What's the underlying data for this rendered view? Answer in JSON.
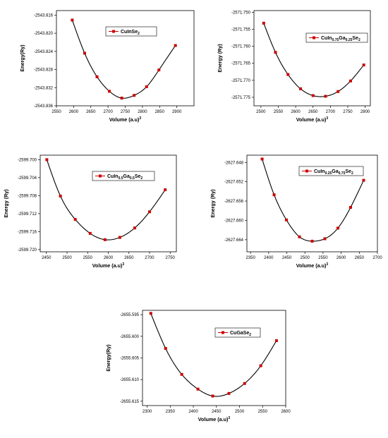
{
  "chart_data": [
    {
      "type": "scatter",
      "xlabel": "Volume (a.u)",
      "xlabel_sup": "3",
      "ylabel": "Energy(Ry)",
      "legend": {
        "base": "CuInSe",
        "sub": "2",
        "rest": "",
        "sub2": "",
        "tail": ""
      },
      "legend_placement": "top-right",
      "x_ticks": [
        2550,
        2600,
        2650,
        2700,
        2750,
        2800,
        2850,
        2900
      ],
      "y_ticks": [
        -2543.816,
        -2543.82,
        -2543.824,
        -2543.828,
        -2543.832,
        -2543.836
      ],
      "y_tick_labels": [
        "-2543.816",
        "-2543.820",
        "-2543.824",
        "-2543.828",
        "-2543.832",
        "-2543.836"
      ],
      "xlim": [
        2550,
        2950
      ],
      "ylim": [
        -2543.836,
        -2543.815
      ],
      "series_color": "#cc0000",
      "points": [
        {
          "x": 2596,
          "y": -2543.8171
        },
        {
          "x": 2632,
          "y": -2543.8244
        },
        {
          "x": 2668,
          "y": -2543.8296
        },
        {
          "x": 2704,
          "y": -2543.8328
        },
        {
          "x": 2740,
          "y": -2543.8343
        },
        {
          "x": 2776,
          "y": -2543.8337
        },
        {
          "x": 2812,
          "y": -2543.8318
        },
        {
          "x": 2848,
          "y": -2543.8281
        },
        {
          "x": 2896,
          "y": -2543.8227
        }
      ]
    },
    {
      "type": "scatter",
      "xlabel": "Volume (a.u)",
      "xlabel_sup": "3",
      "ylabel": "Energy (Ry)",
      "legend": {
        "base": "CuIn",
        "sub": "0.75",
        "rest": "Ga",
        "sub2": "0.25",
        "tail": "Se",
        "sub3": "2"
      },
      "legend_placement": "top-right",
      "x_ticks": [
        2500,
        2550,
        2600,
        2650,
        2700,
        2750,
        2800
      ],
      "y_ticks": [
        -2571.75,
        -2571.755,
        -2571.76,
        -2571.765,
        -2571.77,
        -2571.775
      ],
      "y_tick_labels": [
        "-2571.750",
        "-2571.755",
        "-2571.760",
        "-2571.765",
        "-2571.770",
        "-2571.775"
      ],
      "xlim": [
        2480,
        2815
      ],
      "ylim": [
        -2571.7775,
        -2571.7495
      ],
      "series_color": "#cc0000",
      "points": [
        {
          "x": 2508,
          "y": -2571.7532
        },
        {
          "x": 2542,
          "y": -2571.7618
        },
        {
          "x": 2578,
          "y": -2571.7683
        },
        {
          "x": 2614,
          "y": -2571.7725
        },
        {
          "x": 2650,
          "y": -2571.7745
        },
        {
          "x": 2686,
          "y": -2571.7747
        },
        {
          "x": 2722,
          "y": -2571.7733
        },
        {
          "x": 2758,
          "y": -2571.7702
        },
        {
          "x": 2796,
          "y": -2571.7655
        }
      ]
    },
    {
      "type": "scatter",
      "xlabel": "Volume (a.u)",
      "xlabel_sup": "3",
      "ylabel": "Energy (Ry)",
      "legend": {
        "base": "CuIn",
        "sub": "0.5",
        "rest": "Ga",
        "sub2": "0.5",
        "tail": "Se",
        "sub3": "2"
      },
      "legend_placement": "top-right",
      "x_ticks": [
        2450,
        2500,
        2550,
        2600,
        2650,
        2700,
        2750
      ],
      "y_ticks": [
        -2599.7,
        -2599.704,
        -2599.708,
        -2599.712,
        -2599.716,
        -2599.72
      ],
      "y_tick_labels": [
        "-2599.700",
        "-2599.704",
        "-2599.708",
        "-2599.712",
        "-2599.716",
        "-2599.720"
      ],
      "xlim": [
        2435,
        2765
      ],
      "ylim": [
        -2599.7205,
        -2599.699
      ],
      "series_color": "#cc0000",
      "points": [
        {
          "x": 2451,
          "y": -2599.7
        },
        {
          "x": 2484,
          "y": -2599.7081
        },
        {
          "x": 2520,
          "y": -2599.7133
        },
        {
          "x": 2556,
          "y": -2599.7164
        },
        {
          "x": 2592,
          "y": -2599.7178
        },
        {
          "x": 2628,
          "y": -2599.7173
        },
        {
          "x": 2664,
          "y": -2599.7152
        },
        {
          "x": 2700,
          "y": -2599.7116
        },
        {
          "x": 2738,
          "y": -2599.7067
        }
      ]
    },
    {
      "type": "scatter",
      "xlabel": "Volume (a.u)",
      "xlabel_sup": "3",
      "ylabel": "Energy (Ry)",
      "legend": {
        "base": "CuIn",
        "sub": "0.25",
        "rest": "Ga",
        "sub2": "0.75",
        "tail": "Se",
        "sub3": "2"
      },
      "legend_placement": "top-right",
      "x_ticks": [
        2350,
        2400,
        2450,
        2500,
        2550,
        2600,
        2650,
        2700
      ],
      "y_ticks": [
        -2627.648,
        -2627.652,
        -2627.656,
        -2627.66,
        -2627.664
      ],
      "y_tick_labels": [
        "-2627.648",
        "-2627.652",
        "-2627.656",
        "-2627.660",
        "-2627.664"
      ],
      "xlim": [
        2340,
        2700
      ],
      "ylim": [
        -2627.6665,
        -2627.6465
      ],
      "series_color": "#cc0000",
      "points": [
        {
          "x": 2382,
          "y": -2627.6473
        },
        {
          "x": 2415,
          "y": -2627.6547
        },
        {
          "x": 2449,
          "y": -2627.6599
        },
        {
          "x": 2485,
          "y": -2627.6634
        },
        {
          "x": 2520,
          "y": -2627.6643
        },
        {
          "x": 2555,
          "y": -2627.6638
        },
        {
          "x": 2591,
          "y": -2627.6616
        },
        {
          "x": 2626,
          "y": -2627.6573
        },
        {
          "x": 2662,
          "y": -2627.6517
        }
      ]
    },
    {
      "type": "scatter",
      "xlabel": "Volume (a.u)",
      "xlabel_sup": "3",
      "ylabel": "Energy(Ry)",
      "legend": {
        "base": "CuGaSe",
        "sub": "2",
        "rest": "",
        "sub2": "",
        "tail": ""
      },
      "legend_placement": "top-right",
      "x_ticks": [
        2300,
        2350,
        2400,
        2450,
        2500,
        2550,
        2600
      ],
      "y_ticks": [
        -2655.595,
        -2655.6,
        -2655.605,
        -2655.61,
        -2655.615
      ],
      "y_tick_labels": [
        "-2655.595",
        "-2655.600",
        "-2655.605",
        "-2655.610",
        "-2655.615"
      ],
      "xlim": [
        2290,
        2600
      ],
      "ylim": [
        -2655.616,
        -2655.594
      ],
      "series_color": "#cc0000",
      "points": [
        {
          "x": 2308,
          "y": -2655.5947
        },
        {
          "x": 2340,
          "y": -2655.6028
        },
        {
          "x": 2375,
          "y": -2655.6088
        },
        {
          "x": 2410,
          "y": -2655.6122
        },
        {
          "x": 2442,
          "y": -2655.6138
        },
        {
          "x": 2477,
          "y": -2655.6132
        },
        {
          "x": 2511,
          "y": -2655.6109
        },
        {
          "x": 2546,
          "y": -2655.6068
        },
        {
          "x": 2580,
          "y": -2655.601
        }
      ]
    }
  ]
}
